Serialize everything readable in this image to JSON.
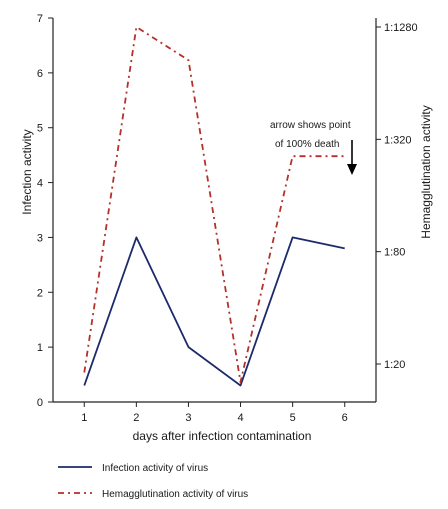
{
  "chart_data": {
    "type": "line",
    "x": [
      1,
      2,
      3,
      4,
      5,
      6
    ],
    "xlabel": "days after infection contamination",
    "ylabel_left": "Infection activity",
    "ylabel_right": "Hemagglutination activity",
    "ylim_left": [
      0,
      7
    ],
    "left_ticks": [
      0,
      1,
      2,
      3,
      4,
      5,
      6,
      7
    ],
    "right_ticks": [
      {
        "label": "1:20",
        "value": 20
      },
      {
        "label": "1:80",
        "value": 80
      },
      {
        "label": "1:320",
        "value": 320
      },
      {
        "label": "1:1280",
        "value": 1280
      }
    ],
    "right_scale": "log",
    "series": [
      {
        "name": "Infection activity of virus",
        "axis": "left",
        "style": "solid",
        "color": "#1c2a6b",
        "values": [
          0.3,
          3.0,
          1.0,
          0.3,
          3.0,
          2.8
        ]
      },
      {
        "name": "Hemagglutination activity of virus",
        "axis": "right",
        "style": "dash-dot",
        "color": "#b5302a",
        "values": [
          18,
          1280,
          850,
          16,
          260,
          260
        ]
      }
    ],
    "annotation": {
      "text_line1": "arrow shows point",
      "text_line2": "of 100% death",
      "x": 6
    },
    "grid": false,
    "legend_position": "bottom-left"
  }
}
